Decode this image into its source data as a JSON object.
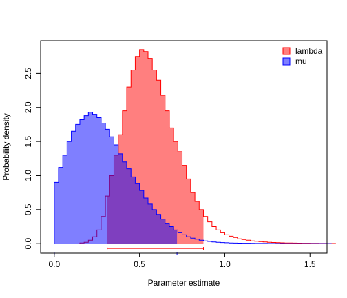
{
  "chart_data": {
    "type": "area",
    "xlabel": "Parameter estimate",
    "ylabel": "Probability density",
    "xlim": [
      -0.08,
      1.6
    ],
    "ylim": [
      -0.14,
      2.98
    ],
    "xticks": [
      0.0,
      0.5,
      1.0,
      1.5
    ],
    "xtick_labels": [
      "0.0",
      "0.5",
      "1.0",
      "1.5"
    ],
    "yticks": [
      0.0,
      0.5,
      1.0,
      1.5,
      2.0,
      2.5
    ],
    "ytick_labels": [
      "0.0",
      "0.5",
      "1.0",
      "1.5",
      "2.0",
      "2.5"
    ],
    "legend_position": "top-right",
    "bin_width": 0.025,
    "series": [
      {
        "name": "lambda",
        "color": "#ff0000",
        "fill": "rgba(255,0,0,0.5)",
        "x_start": 0.15,
        "density": [
          0.01,
          0.02,
          0.05,
          0.1,
          0.2,
          0.4,
          0.7,
          1.0,
          1.3,
          1.6,
          1.95,
          2.3,
          2.55,
          2.75,
          2.85,
          2.82,
          2.72,
          2.55,
          2.4,
          2.18,
          1.95,
          1.7,
          1.5,
          1.35,
          1.15,
          0.95,
          0.75,
          0.62,
          0.5,
          0.4,
          0.32,
          0.25,
          0.2,
          0.16,
          0.13,
          0.11,
          0.09,
          0.07,
          0.06,
          0.05,
          0.04,
          0.035,
          0.03,
          0.025,
          0.02,
          0.017,
          0.015,
          0.012,
          0.01,
          0.009,
          0.008,
          0.007,
          0.006,
          0.005,
          0.004,
          0.004,
          0.003,
          0.003,
          0.002,
          0.002
        ],
        "filled_range": [
          0.31,
          0.875
        ],
        "interval": [
          0.31,
          0.875
        ]
      },
      {
        "name": "mu",
        "color": "#0000ff",
        "fill": "rgba(0,0,255,0.5)",
        "x_start": 0.0,
        "density": [
          0.9,
          1.12,
          1.3,
          1.5,
          1.65,
          1.75,
          1.82,
          1.88,
          1.93,
          1.9,
          1.85,
          1.77,
          1.68,
          1.57,
          1.45,
          1.32,
          1.2,
          1.1,
          0.98,
          0.88,
          0.78,
          0.67,
          0.58,
          0.5,
          0.43,
          0.36,
          0.3,
          0.25,
          0.2,
          0.16,
          0.13,
          0.1,
          0.08,
          0.065,
          0.05,
          0.04,
          0.032,
          0.025,
          0.02,
          0.016,
          0.013,
          0.01,
          0.008,
          0.007,
          0.006,
          0.005,
          0.004,
          0.0035,
          0.003,
          0.0025,
          0.002,
          0.0018,
          0.0015,
          0.0012,
          0.001,
          0.0009,
          0.0008,
          0.0007,
          0.0006,
          0.0005,
          0.0004,
          0.0003,
          0.0003,
          0.0002,
          0.0002
        ],
        "filled_range": [
          0.0,
          0.72
        ],
        "interval": [
          0.0,
          0.72
        ]
      }
    ]
  }
}
